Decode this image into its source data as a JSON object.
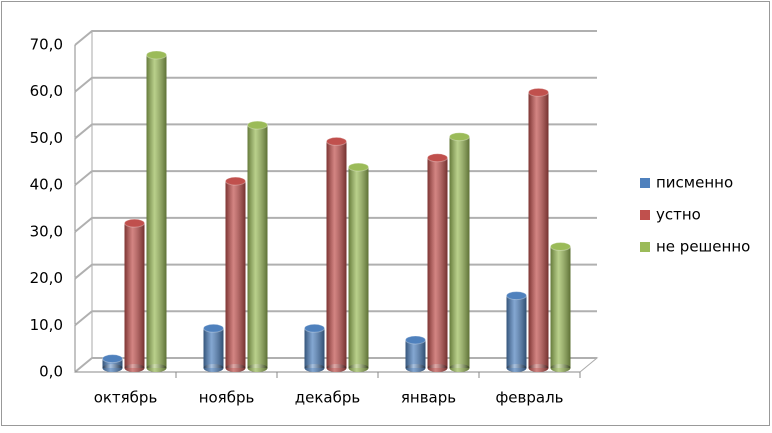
{
  "chart_data": {
    "type": "bar3d",
    "categories": [
      "октябрь",
      "ноябрь",
      "декабрь",
      "январь",
      "февраль"
    ],
    "series": [
      {
        "name": "писменно",
        "color": "#4f81bd",
        "values": [
          2,
          8.5,
          8.5,
          6,
          15.5
        ]
      },
      {
        "name": "устно",
        "color": "#c0504d",
        "values": [
          31,
          40,
          48.5,
          45,
          59
        ]
      },
      {
        "name": "не решенно",
        "color": "#9bbb59",
        "values": [
          67,
          52,
          43,
          49.5,
          26
        ]
      }
    ],
    "ylim": [
      0,
      70
    ],
    "yticks": [
      {
        "value": 0,
        "label": "0,0"
      },
      {
        "value": 10,
        "label": "10,0"
      },
      {
        "value": 20,
        "label": "20,0"
      },
      {
        "value": 30,
        "label": "30,0"
      },
      {
        "value": 40,
        "label": "40,0"
      },
      {
        "value": 50,
        "label": "50,0"
      },
      {
        "value": 60,
        "label": "60,0"
      },
      {
        "value": 70,
        "label": "70,0"
      }
    ],
    "grid": true,
    "legend": "right"
  }
}
